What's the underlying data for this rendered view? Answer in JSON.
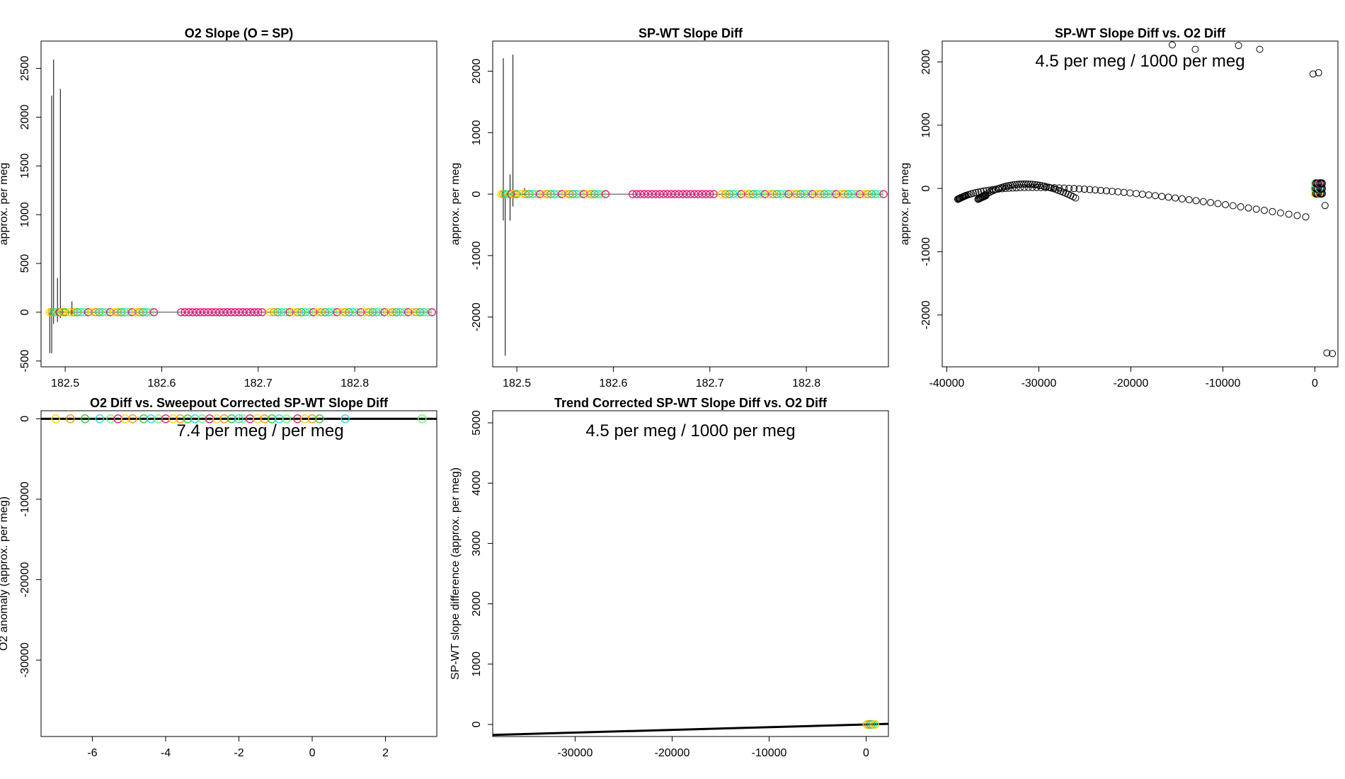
{
  "chart_data": [
    {
      "type": "scatter",
      "title": "O2 Slope (O = SP)",
      "xlabel": "",
      "ylabel": "approx. per meg",
      "xlim": [
        182.475,
        182.885
      ],
      "ylim": [
        -560,
        2780
      ],
      "xticks": [
        182.5,
        182.6,
        182.7,
        182.8
      ],
      "yticks": [
        -500,
        0,
        500,
        1000,
        1500,
        2000,
        2500
      ],
      "point_segments": [
        {
          "x0": 182.484,
          "x1": 182.5,
          "n": 9,
          "y": 0
        },
        {
          "x0": 182.505,
          "x1": 182.592,
          "n": 24,
          "y": 0
        },
        {
          "x0": 182.62,
          "x1": 182.704,
          "n": 22,
          "y": 0
        },
        {
          "x0": 182.712,
          "x1": 182.88,
          "n": 42,
          "y": 0
        }
      ],
      "spikes": [
        {
          "x": 182.484,
          "lo": -420,
          "hi": 0
        },
        {
          "x": 182.486,
          "lo": -420,
          "hi": 2220
        },
        {
          "x": 182.488,
          "lo": -120,
          "hi": 2590
        },
        {
          "x": 182.492,
          "lo": -100,
          "hi": 350
        },
        {
          "x": 182.495,
          "lo": -60,
          "hi": 2290
        },
        {
          "x": 182.507,
          "lo": -40,
          "hi": 110
        }
      ]
    },
    {
      "type": "scatter",
      "title": "SP-WT Slope Diff",
      "xlabel": "",
      "ylabel": "approx. per meg",
      "xlim": [
        182.475,
        182.885
      ],
      "ylim": [
        -2810,
        2490
      ],
      "xticks": [
        182.5,
        182.6,
        182.7,
        182.8
      ],
      "yticks": [
        -2000,
        -1000,
        0,
        1000,
        2000
      ],
      "point_segments": [
        {
          "x0": 182.484,
          "x1": 182.5,
          "n": 9,
          "y": 0
        },
        {
          "x0": 182.505,
          "x1": 182.592,
          "n": 24,
          "y": 0
        },
        {
          "x0": 182.62,
          "x1": 182.704,
          "n": 22,
          "y": 0
        },
        {
          "x0": 182.712,
          "x1": 182.88,
          "n": 42,
          "y": 0
        }
      ],
      "spikes": [
        {
          "x": 182.486,
          "lo": -430,
          "hi": 2210
        },
        {
          "x": 182.488,
          "lo": -2630,
          "hi": 0
        },
        {
          "x": 182.493,
          "lo": -430,
          "hi": 320
        },
        {
          "x": 182.496,
          "lo": -200,
          "hi": 2270
        },
        {
          "x": 182.508,
          "lo": -40,
          "hi": 100
        }
      ]
    },
    {
      "type": "scatter",
      "title": "SP-WT Slope Diff vs. O2 Diff",
      "xlabel": "",
      "ylabel": "approx. per meg",
      "annotation": "4.5 per meg / 1000 per meg",
      "xlim": [
        -40500,
        2500
      ],
      "ylim": [
        -2820,
        2330
      ],
      "xticks": [
        -40000,
        -30000,
        -20000,
        -10000,
        0
      ],
      "yticks": [
        -2000,
        -1000,
        0,
        1000,
        2000
      ],
      "arcs": [
        {
          "x0": -38800,
          "y0": -170,
          "xp": -33000,
          "yp": 310,
          "x1": -1000,
          "y1": -450,
          "n": 70
        },
        {
          "x0": -36600,
          "y0": -170,
          "xp": -32000,
          "yp": 300,
          "x1": -26000,
          "y1": -150,
          "n": 45
        }
      ],
      "outliers": [
        {
          "x": -15500,
          "y": 2270
        },
        {
          "x": -13000,
          "y": 2200
        },
        {
          "x": -8300,
          "y": 2260
        },
        {
          "x": -6000,
          "y": 2200
        },
        {
          "x": -200,
          "y": 1810
        },
        {
          "x": 400,
          "y": 1830
        },
        {
          "x": 1300,
          "y": -2600
        },
        {
          "x": 1900,
          "y": -2610
        },
        {
          "x": 1100,
          "y": -270
        }
      ]
    },
    {
      "type": "scatter",
      "title": "O2 Diff vs. Sweepout Corrected SP-WT Slope Diff",
      "xlabel": "",
      "ylabel": "O2 anomaly (approx. per meg)",
      "annotation": "7.4 per meg / per meg",
      "xlim": [
        -7.4,
        3.4
      ],
      "ylim": [
        -39500,
        1000
      ],
      "xticks": [
        -6,
        -4,
        -2,
        0,
        2
      ],
      "yticks": [
        -30000,
        -20000,
        -10000,
        0
      ],
      "x": [
        -7.0,
        -6.6,
        -6.2,
        -5.8,
        -5.5,
        -5.3,
        -5.1,
        -4.9,
        -4.6,
        -4.4,
        -4.2,
        -4.0,
        -3.8,
        -3.6,
        -3.4,
        -3.2,
        -3.0,
        -2.8,
        -2.6,
        -2.4,
        -2.2,
        -2.0,
        -1.9,
        -1.7,
        -1.5,
        -1.3,
        -1.1,
        -0.9,
        -0.7,
        -0.4,
        -0.2,
        0.0,
        0.2,
        0.9,
        3.0
      ],
      "y": [
        0,
        0,
        0,
        0,
        0,
        0,
        0,
        0,
        0,
        0,
        0,
        0,
        0,
        0,
        0,
        0,
        0,
        0,
        0,
        0,
        0,
        0,
        0,
        0,
        0,
        0,
        0,
        0,
        0,
        0,
        0,
        0,
        0,
        0,
        0
      ],
      "fit_line": {
        "x": [
          -7.4,
          3.4
        ],
        "y": [
          0,
          0
        ]
      }
    },
    {
      "type": "scatter",
      "title": "Trend Corrected SP-WT Slope Diff vs. O2 Diff",
      "xlabel": "",
      "ylabel": "SP-WT slope difference (approx. per meg)",
      "annotation": "4.5 per meg / 1000 per meg",
      "xlim": [
        -38500,
        2300
      ],
      "ylim": [
        -200,
        5200
      ],
      "xticks": [
        -30000,
        -20000,
        -10000,
        0
      ],
      "yticks": [
        0,
        1000,
        2000,
        3000,
        4000,
        5000
      ],
      "x": [
        100,
        300,
        500,
        700,
        900
      ],
      "y": [
        0,
        0,
        0,
        0,
        0
      ],
      "fit_line": {
        "x": [
          -38500,
          2300
        ],
        "y": [
          -173,
          10
        ]
      }
    }
  ],
  "colors": {
    "palette": [
      "#ffd800",
      "#ff9900",
      "#33cc33",
      "#22dddd",
      "#66ff66",
      "#e0207a",
      "#000000"
    ],
    "cluster": "#e0207a"
  }
}
